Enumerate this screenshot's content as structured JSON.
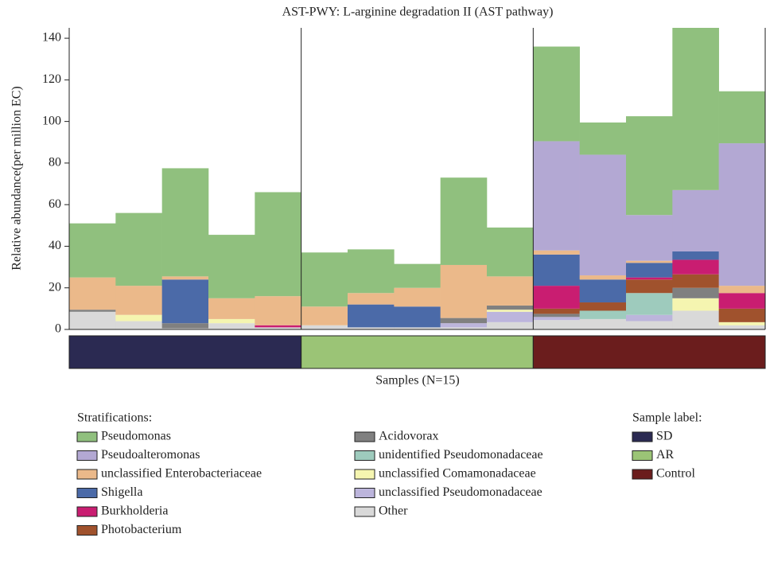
{
  "chart_data": {
    "type": "stacked_bar",
    "title": "AST-PWY: L-arginine degradation II (AST pathway)",
    "y_label": "Relative abundance(per million EC)",
    "x_label": "Samples (N=15)",
    "legend_title": "Stratifications:",
    "categories": [
      null,
      null,
      null,
      null,
      null,
      null,
      null,
      null,
      null,
      null,
      null,
      null,
      null,
      null,
      null
    ],
    "ylim": [
      0,
      145
    ],
    "yticks": [
      0,
      20,
      40,
      60,
      80,
      100,
      120,
      140
    ],
    "series": [
      {
        "name": "Pseudomonas",
        "color": "#90c07e",
        "values": [
          26,
          35,
          52,
          30.5,
          50,
          26,
          21,
          11.5,
          42,
          23.5,
          45.5,
          15.5,
          47.5,
          78,
          25
        ]
      },
      {
        "name": "Pseudoalteromonas",
        "color": "#b3a8d3",
        "values": [
          0,
          0,
          0,
          0,
          0,
          0,
          0,
          0,
          0,
          0,
          52.5,
          58,
          22,
          29.5,
          68.5
        ]
      },
      {
        "name": "unclassified Enterobacteriaceae",
        "color": "#ebb98a",
        "values": [
          15.5,
          14,
          1.5,
          10,
          14,
          9,
          5.5,
          9,
          25.5,
          14,
          2,
          2,
          1,
          0,
          3.5
        ]
      },
      {
        "name": "Shigella",
        "color": "#4b6aa8",
        "values": [
          0,
          0,
          21,
          0,
          0,
          0,
          11,
          10,
          0,
          0,
          15,
          11,
          7,
          4,
          0
        ]
      },
      {
        "name": "Burkholderia",
        "color": "#c91d71",
        "values": [
          0,
          0,
          0,
          0,
          1,
          0,
          0,
          0,
          0,
          0,
          11,
          0,
          1,
          7,
          7.5
        ]
      },
      {
        "name": "Photobacterium",
        "color": "#a0522d",
        "values": [
          0,
          0,
          0,
          0,
          0,
          0,
          0,
          0,
          0,
          0,
          2.5,
          4,
          6.5,
          6.5,
          6.5
        ]
      },
      {
        "name": "Acidovorax",
        "color": "#808080",
        "values": [
          1,
          0,
          2.5,
          0,
          0,
          0,
          0,
          0,
          2.5,
          2,
          1.5,
          0,
          0,
          5,
          0
        ]
      },
      {
        "name": "unidentified Pseudomonadaceae",
        "color": "#9ecbbd",
        "values": [
          0,
          0,
          0,
          0,
          0,
          0,
          0,
          0,
          0,
          0,
          0,
          4,
          10.5,
          0,
          0
        ]
      },
      {
        "name": "unclassified Comamonadaceae",
        "color": "#f5f5b0",
        "values": [
          0,
          3,
          0,
          2,
          0,
          0,
          0,
          0,
          0,
          1,
          0,
          0,
          0,
          6,
          1.5
        ]
      },
      {
        "name": "unclassified Pseudomonadaceae",
        "color": "#bcb5dc",
        "values": [
          0,
          0,
          0,
          0,
          0,
          0,
          0,
          0,
          2,
          5,
          1.5,
          0,
          3,
          0,
          0
        ]
      },
      {
        "name": "Other",
        "color": "#d9d9d9",
        "values": [
          8.5,
          4,
          0.5,
          3,
          1,
          2,
          1,
          1,
          1,
          3.5,
          4.5,
          5,
          4,
          9,
          2
        ]
      }
    ],
    "sample_groups": {
      "title": "Sample label:",
      "items": [
        {
          "name": "SD",
          "color": "#2b2a52"
        },
        {
          "name": "AR",
          "color": "#9bc476"
        },
        {
          "name": "Control",
          "color": "#6b1d1d"
        }
      ]
    }
  }
}
